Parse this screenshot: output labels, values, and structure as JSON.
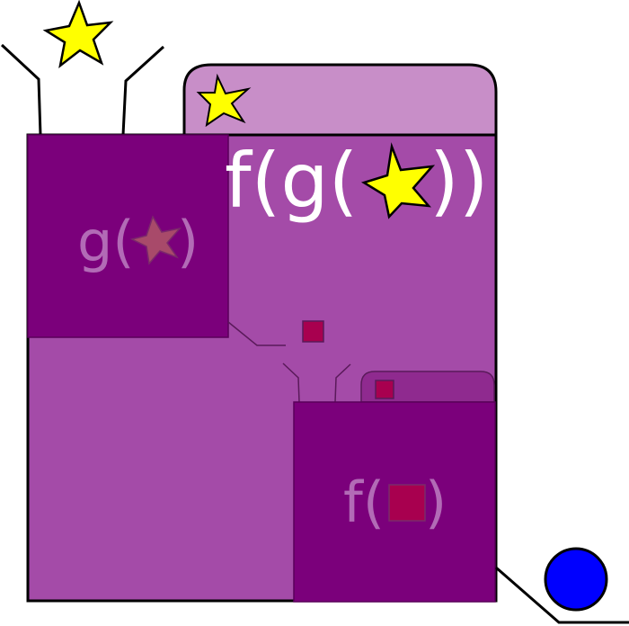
{
  "labels": {
    "outer_prefix": "f(g(",
    "outer_suffix": "))",
    "inner_g_prefix": "g(",
    "inner_g_suffix": ")",
    "inner_f_prefix": "f(",
    "inner_f_suffix": ")"
  },
  "colors": {
    "outer_box": "#a44ba8",
    "outer_tab": "#c88ec8",
    "inner_box": "#7b007b",
    "inner_tab": "#8f2a8f",
    "star_yellow": "#ffff00",
    "star_dim": "#a84a6a",
    "square": "#a8004f",
    "ball": "#0000ff",
    "label_white": "#ffffff",
    "label_dim": "#b26bb6"
  },
  "icons": {
    "star": "star-icon",
    "square": "square-icon",
    "ball": "circle-icon"
  }
}
